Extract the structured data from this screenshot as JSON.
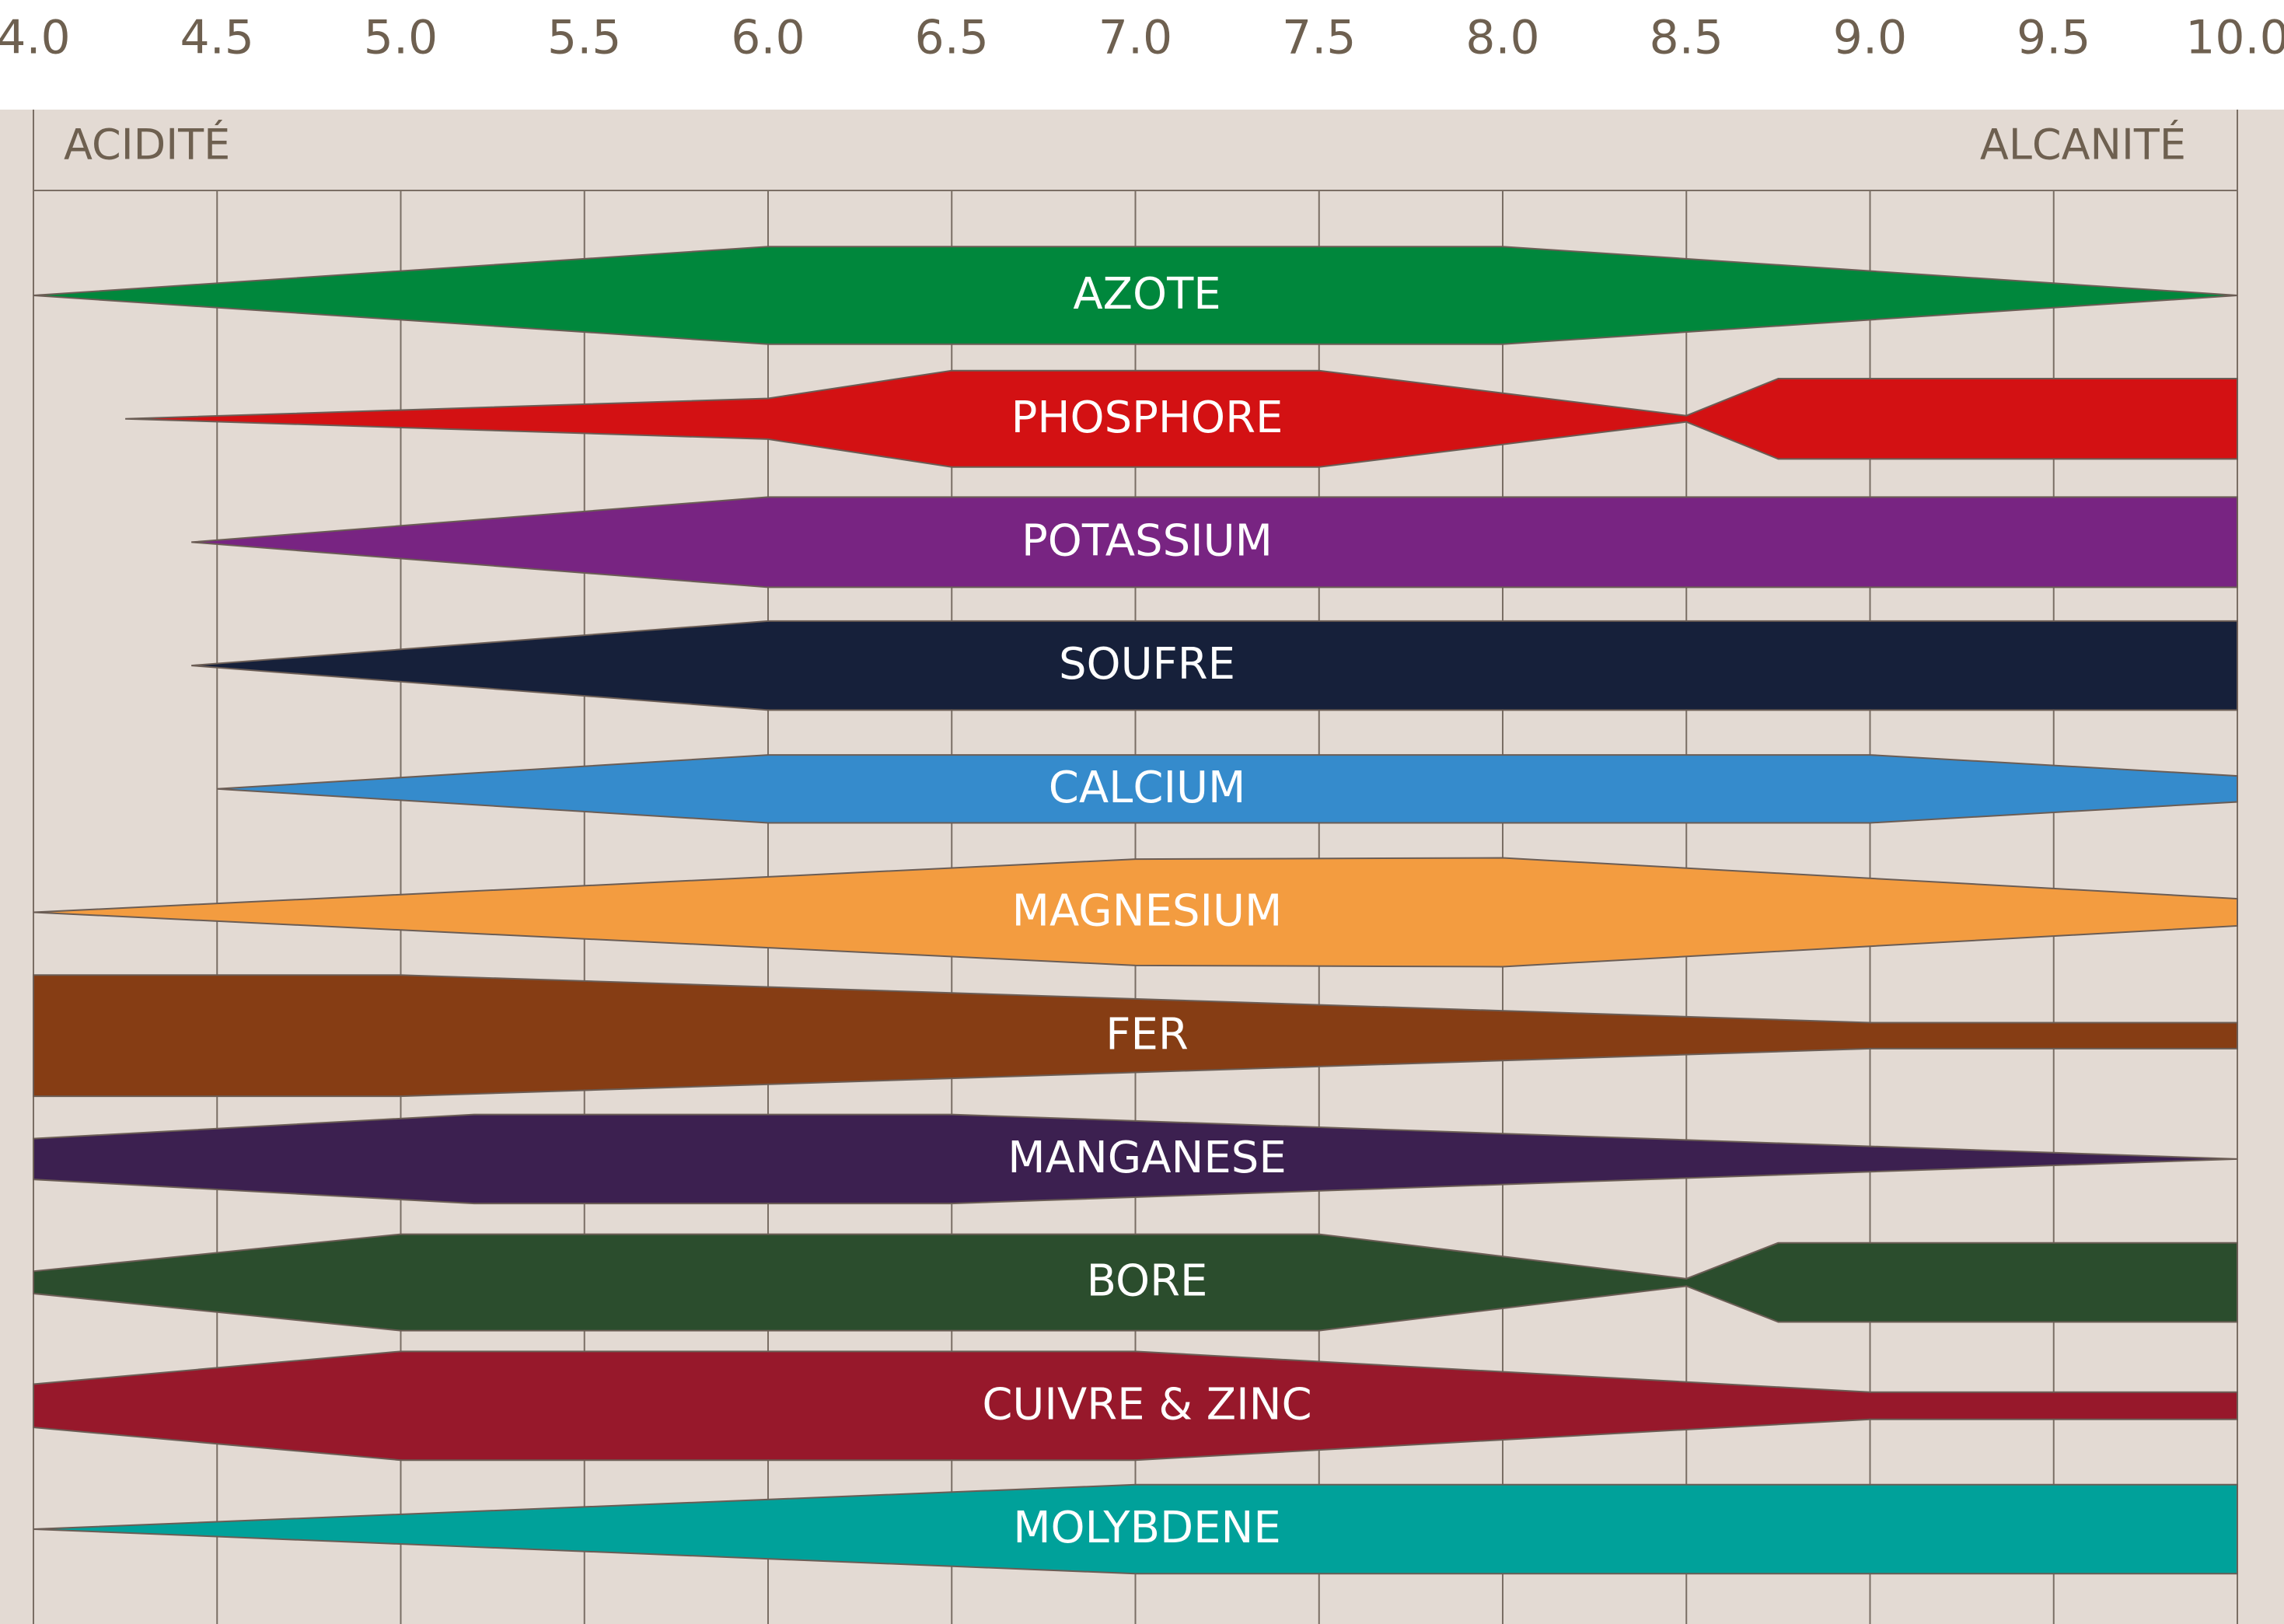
{
  "chart_data": {
    "type": "band",
    "left_label": "ACIDITÉ",
    "right_label": "ALCANITÉ",
    "xlim": [
      4,
      10
    ],
    "xticks": [
      {
        "value": 4,
        "label": "4.0"
      },
      {
        "value": 4.5,
        "label": "4.5"
      },
      {
        "value": 5,
        "label": "5.0"
      },
      {
        "value": 5.5,
        "label": "5.5"
      },
      {
        "value": 6,
        "label": "6.0"
      },
      {
        "value": 6.5,
        "label": "6.5"
      },
      {
        "value": 7,
        "label": "7.0"
      },
      {
        "value": 7.5,
        "label": "7.5"
      },
      {
        "value": 8,
        "label": "8.0"
      },
      {
        "value": 8.5,
        "label": "8.5"
      },
      {
        "value": 9,
        "label": "9.0"
      },
      {
        "value": 9.5,
        "label": "9.5"
      },
      {
        "value": 10,
        "label": "10.0"
      }
    ],
    "grid": true,
    "series": [
      {
        "name": "AZOTE",
        "color": "#00873c",
        "x": [
          4,
          6,
          8,
          10
        ],
        "values": [
          0,
          7.9,
          7.9,
          0
        ]
      },
      {
        "name": "PHOSPHORE",
        "color": "#d31113",
        "x": [
          4.25,
          6,
          6.5,
          7.5,
          8.5,
          8.75,
          10
        ],
        "values": [
          0,
          3.3,
          7.8,
          7.8,
          0.5,
          6.5,
          6.5
        ]
      },
      {
        "name": "POTASSIUM",
        "color": "#782482",
        "x": [
          4.43,
          6,
          10
        ],
        "values": [
          0,
          7.3,
          7.3
        ]
      },
      {
        "name": "SOUFRE",
        "color": "#16203a",
        "x": [
          4.43,
          6,
          10
        ],
        "values": [
          0,
          7.2,
          7.2
        ]
      },
      {
        "name": "CALCIUM",
        "color": "#358bcc",
        "x": [
          4.5,
          6,
          9,
          10
        ],
        "values": [
          0,
          5.5,
          5.5,
          2.1
        ]
      },
      {
        "name": "MAGNESIUM",
        "color": "#f39c40",
        "x": [
          4,
          7,
          8,
          10
        ],
        "values": [
          0,
          8.6,
          8.8,
          2.2
        ]
      },
      {
        "name": "FER",
        "color": "#863d14",
        "x": [
          4,
          5,
          9,
          10
        ],
        "values": [
          9.8,
          9.8,
          2.1,
          2.1
        ]
      },
      {
        "name": "MANGANESE",
        "color": "#3c2050",
        "x": [
          4,
          5.2,
          6.5,
          10
        ],
        "values": [
          3.3,
          7.2,
          7.2,
          0
        ]
      },
      {
        "name": "BORE",
        "color": "#2b4d2d",
        "x": [
          4,
          5,
          7.5,
          8.5,
          8.75,
          10
        ],
        "values": [
          1.8,
          7.8,
          7.8,
          0.6,
          6.4,
          6.4
        ]
      },
      {
        "name": "CUIVRE & ZINC",
        "color": "#97182b",
        "x": [
          4,
          5,
          7,
          9,
          10
        ],
        "values": [
          3.5,
          8.8,
          8.8,
          2.2,
          2.2
        ]
      },
      {
        "name": "MOLYBDENE",
        "color": "#00a19a",
        "x": [
          4,
          7,
          10
        ],
        "values": [
          0,
          7.2,
          7.2
        ]
      }
    ]
  }
}
